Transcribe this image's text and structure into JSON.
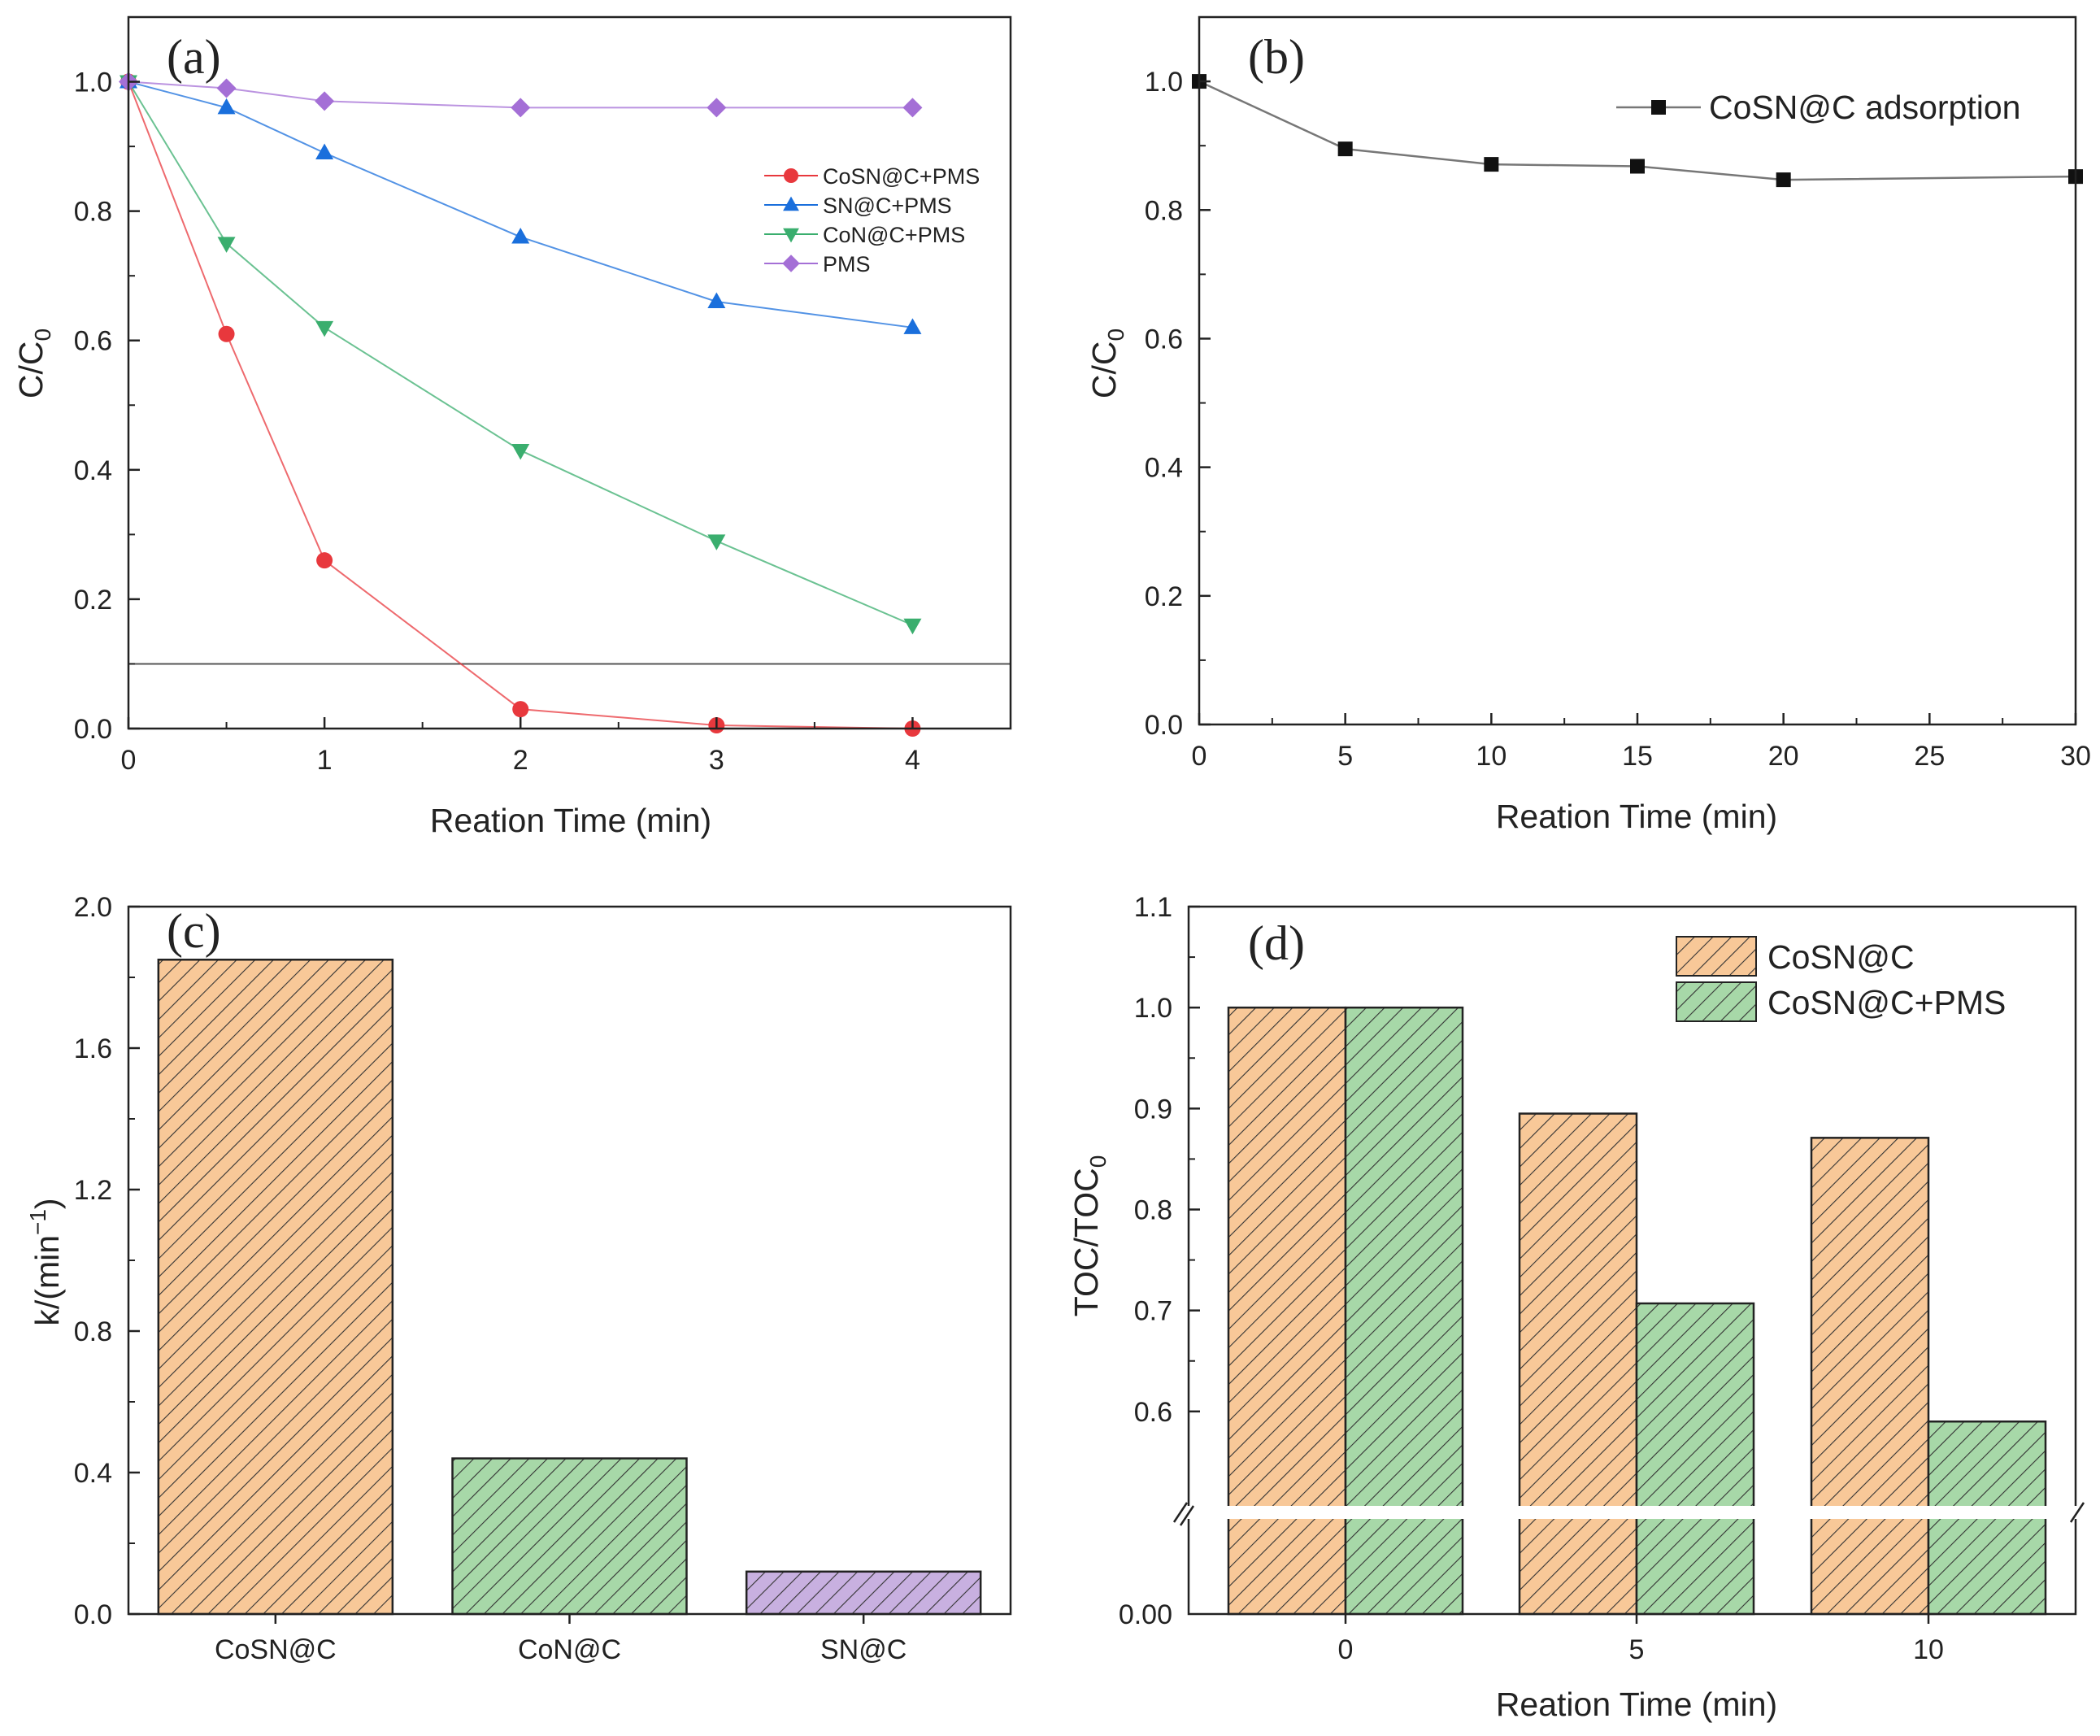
{
  "chart_data": [
    {
      "panel": "(a)",
      "type": "line",
      "xlabel": "Reation Time (min)",
      "ylabel": "C/C",
      "ylabel_sub": "0",
      "xlim": [
        0,
        4.5
      ],
      "ylim": [
        0,
        1.1
      ],
      "xticks": [
        0,
        1,
        2,
        3,
        4
      ],
      "yticks": [
        0.0,
        0.2,
        0.4,
        0.6,
        0.8,
        1.0
      ],
      "reference_line_y": 0.1,
      "legend_position": "right-middle",
      "series": [
        {
          "name": "CoSN@C+PMS",
          "color": "#e8383d",
          "marker": "circle",
          "x": [
            0,
            0.5,
            1,
            2,
            3,
            4
          ],
          "y": [
            1.0,
            0.61,
            0.26,
            0.03,
            0.005,
            0.0
          ]
        },
        {
          "name": "SN@C+PMS",
          "color": "#1a6fdc",
          "marker": "triangle-up",
          "x": [
            0,
            0.5,
            1,
            2,
            3,
            4
          ],
          "y": [
            1.0,
            0.96,
            0.89,
            0.76,
            0.66,
            0.62
          ]
        },
        {
          "name": "CoN@C+PMS",
          "color": "#3aae6e",
          "marker": "triangle-down",
          "x": [
            0,
            0.5,
            1,
            2,
            3,
            4
          ],
          "y": [
            1.0,
            0.75,
            0.62,
            0.43,
            0.29,
            0.16
          ]
        },
        {
          "name": "PMS",
          "color": "#a46fd6",
          "marker": "diamond",
          "x": [
            0,
            0.5,
            1,
            2,
            3,
            4
          ],
          "y": [
            1.0,
            0.99,
            0.97,
            0.96,
            0.96,
            0.96
          ]
        }
      ]
    },
    {
      "panel": "(b)",
      "type": "line",
      "xlabel": "Reation Time (min)",
      "ylabel": "C/C",
      "ylabel_sub": "0",
      "xlim": [
        0,
        30
      ],
      "ylim": [
        0,
        1.1
      ],
      "xticks": [
        0,
        5,
        10,
        15,
        20,
        25,
        30
      ],
      "yticks": [
        0.0,
        0.2,
        0.4,
        0.6,
        0.8,
        1.0
      ],
      "legend_position": "top-right",
      "series": [
        {
          "name": "CoSN@C adsorption",
          "color": "#111111",
          "line_color": "#777777",
          "marker": "square",
          "x": [
            0,
            5,
            10,
            15,
            20,
            30
          ],
          "y": [
            1.0,
            0.895,
            0.871,
            0.868,
            0.847,
            0.852
          ]
        }
      ]
    },
    {
      "panel": "(c)",
      "type": "bar",
      "xlabel": "",
      "ylabel": "k/(min",
      "ylabel_sup": "−1",
      "ylabel_end": ")",
      "ylim": [
        0,
        2.0
      ],
      "yticks": [
        0.0,
        0.4,
        0.8,
        1.2,
        1.6,
        2.0
      ],
      "categories": [
        "CoSN@C",
        "CoN@C",
        "SN@C"
      ],
      "values": [
        1.85,
        0.44,
        0.12
      ],
      "colors": [
        "#f8c898",
        "#a7d8a8",
        "#c8b0e0"
      ]
    },
    {
      "panel": "(d)",
      "type": "bar",
      "xlabel": "Reation Time (min)",
      "ylabel": "TOC/TOC",
      "ylabel_sub": "0",
      "axis_break": [
        0.0,
        0.5
      ],
      "ylim": [
        0.5,
        1.1
      ],
      "yticks": [
        0.6,
        0.7,
        0.8,
        0.9,
        1.0,
        1.1
      ],
      "ytick_below_break": "0.00",
      "categories": [
        "0",
        "5",
        "10"
      ],
      "legend_position": "top-right",
      "series": [
        {
          "name": "CoSN@C",
          "color": "#f8c898",
          "values": [
            1.0,
            0.895,
            0.871
          ]
        },
        {
          "name": "CoSN@C+PMS",
          "color": "#a7d8a8",
          "values": [
            1.0,
            0.707,
            0.59
          ]
        }
      ]
    }
  ]
}
